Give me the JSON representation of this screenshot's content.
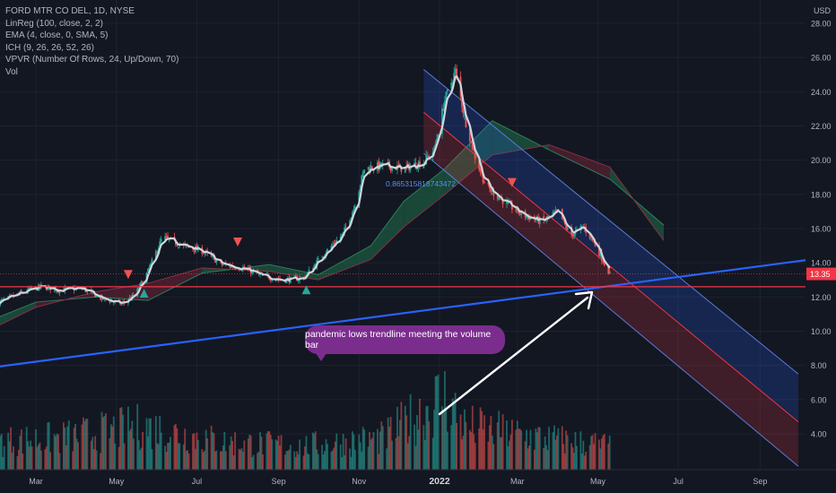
{
  "legend": {
    "title": "FORD MTR CO DEL, 1D, NYSE",
    "lines": [
      "LinReg (100, close, 2, 2)",
      "EMA (4, close, 0, SMA, 5)",
      "ICH (9, 26, 26, 52, 26)",
      "VPVR (Number Of Rows, 24, Up/Down, 70)",
      "Vol"
    ]
  },
  "price_axis": {
    "currency": "USD",
    "ticks": [
      "28.00",
      "26.00",
      "24.00",
      "22.00",
      "20.00",
      "18.00",
      "16.00",
      "14.00",
      "12.00",
      "10.00",
      "8.00",
      "6.00",
      "4.00"
    ],
    "last_price": "13.35"
  },
  "time_axis": {
    "labels": [
      "Mar",
      "May",
      "Jul",
      "Sep",
      "Nov",
      "2022",
      "Mar",
      "May",
      "Jul",
      "Sep"
    ]
  },
  "annotations": {
    "callout": "pandemic lows trendline meeting the volume bar",
    "r_squared": "0.865315818743472"
  },
  "colors": {
    "background": "#131722",
    "up": "#26a69a",
    "down": "#ef5350",
    "ema": "#d1d4dc",
    "trendline": "#2962ff",
    "horizontal": "#f23645",
    "callout": "#7b2d8e"
  },
  "chart_data": {
    "type": "candlestick",
    "symbol": "F",
    "ylim": [
      2.4,
      28.9
    ],
    "close_path": [
      [
        "2021-02-01",
        11.7
      ],
      [
        "2021-02-20",
        12.3
      ],
      [
        "2021-03-05",
        12.6
      ],
      [
        "2021-03-20",
        12.4
      ],
      [
        "2021-04-05",
        12.5
      ],
      [
        "2021-04-20",
        11.9
      ],
      [
        "2021-05-05",
        11.6
      ],
      [
        "2021-05-15",
        12.1
      ],
      [
        "2021-05-25",
        13.5
      ],
      [
        "2021-06-05",
        15.5
      ],
      [
        "2021-06-20",
        15.0
      ],
      [
        "2021-07-05",
        14.7
      ],
      [
        "2021-07-20",
        13.9
      ],
      [
        "2021-08-05",
        13.7
      ],
      [
        "2021-08-20",
        13.2
      ],
      [
        "2021-09-05",
        13.0
      ],
      [
        "2021-09-20",
        13.1
      ],
      [
        "2021-10-05",
        14.5
      ],
      [
        "2021-10-20",
        15.7
      ],
      [
        "2021-10-28",
        17.2
      ],
      [
        "2021-11-05",
        19.5
      ],
      [
        "2021-11-20",
        19.7
      ],
      [
        "2021-12-05",
        19.5
      ],
      [
        "2021-12-20",
        19.9
      ],
      [
        "2021-12-28",
        20.6
      ],
      [
        "2022-01-05",
        23.5
      ],
      [
        "2022-01-13",
        25.2
      ],
      [
        "2022-01-20",
        22.5
      ],
      [
        "2022-01-28",
        20.2
      ],
      [
        "2022-02-05",
        18.5
      ],
      [
        "2022-02-20",
        17.5
      ],
      [
        "2022-03-05",
        16.8
      ],
      [
        "2022-03-20",
        16.4
      ],
      [
        "2022-04-01",
        17.0
      ],
      [
        "2022-04-10",
        15.6
      ],
      [
        "2022-04-20",
        16.1
      ],
      [
        "2022-04-28",
        15.2
      ],
      [
        "2022-05-10",
        13.35
      ]
    ],
    "markers": {
      "up": [
        "2021-05-22",
        "2021-09-22"
      ],
      "down": [
        "2021-05-10",
        "2021-08-01",
        "2022-02-25"
      ]
    },
    "regression_channel": {
      "x": [
        "2021-12-20",
        "2022-09-30"
      ],
      "upper": [
        25.3,
        7.5
      ],
      "middle": [
        22.8,
        4.7
      ],
      "lower": [
        20.4,
        2.1
      ]
    },
    "ichimoku_cloud": {
      "x": [
        "2021-01-15",
        "2021-03-01",
        "2021-04-15",
        "2021-05-25",
        "2021-07-05",
        "2021-08-25",
        "2021-10-01",
        "2021-11-10",
        "2021-12-05",
        "2022-01-05",
        "2022-02-10",
        "2022-03-25",
        "2022-05-10",
        "2022-06-20"
      ],
      "span_a": [
        10.3,
        11.7,
        12.0,
        11.8,
        13.4,
        13.9,
        13.3,
        15.0,
        17.6,
        19.5,
        22.3,
        20.6,
        18.9,
        16.2
      ],
      "span_b": [
        9.7,
        11.4,
        12.3,
        12.8,
        13.7,
        13.5,
        13.0,
        14.2,
        16.1,
        18.0,
        20.3,
        20.9,
        19.6,
        15.3
      ]
    },
    "trendline": {
      "x": [
        "2020-12-20",
        "2022-10-20"
      ],
      "y": [
        7.5,
        14.3
      ]
    },
    "horizontal_level": 12.6,
    "volume_profile": {
      "x": [
        "2021-01-20",
        "2021-03-20",
        "2021-05-20",
        "2021-07-20",
        "2021-09-20",
        "2021-11-20",
        "2022-01-05",
        "2022-01-20",
        "2022-03-20",
        "2022-05-10"
      ],
      "relative": [
        0.35,
        0.4,
        0.55,
        0.35,
        0.3,
        0.4,
        0.95,
        0.55,
        0.4,
        0.3
      ]
    }
  }
}
